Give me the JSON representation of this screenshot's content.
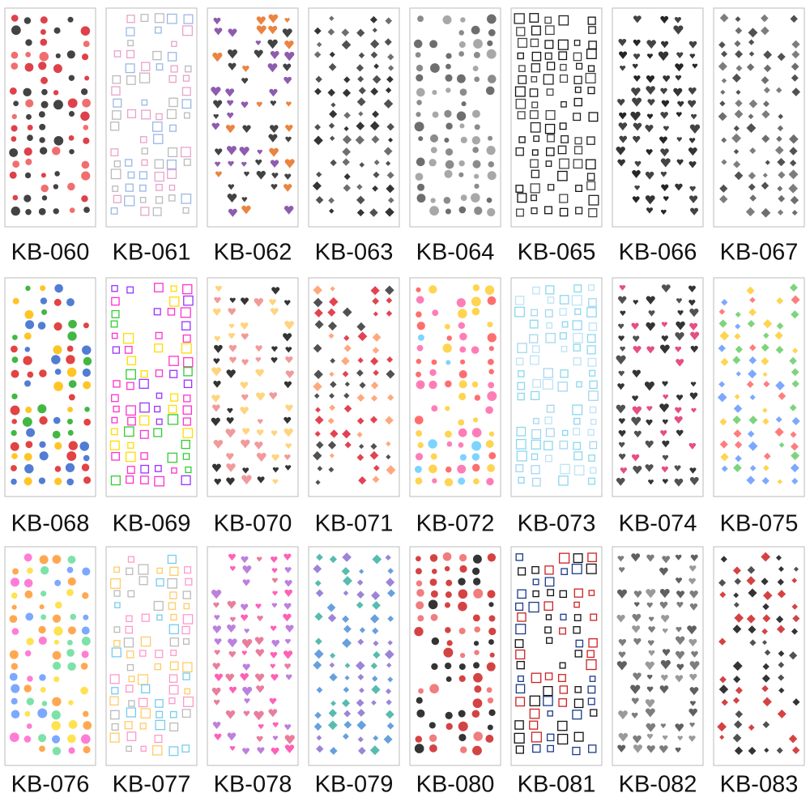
{
  "items": [
    "KB-060",
    "KB-061",
    "KB-062",
    "KB-063",
    "KB-064",
    "KB-065",
    "KB-066",
    "KB-067",
    "KB-068",
    "KB-069",
    "KB-070",
    "KB-071",
    "KB-072",
    "KB-073",
    "KB-074",
    "KB-075",
    "KB-076",
    "KB-077",
    "KB-078",
    "KB-079",
    "KB-080",
    "KB-081",
    "KB-082",
    "KB-083"
  ]
}
